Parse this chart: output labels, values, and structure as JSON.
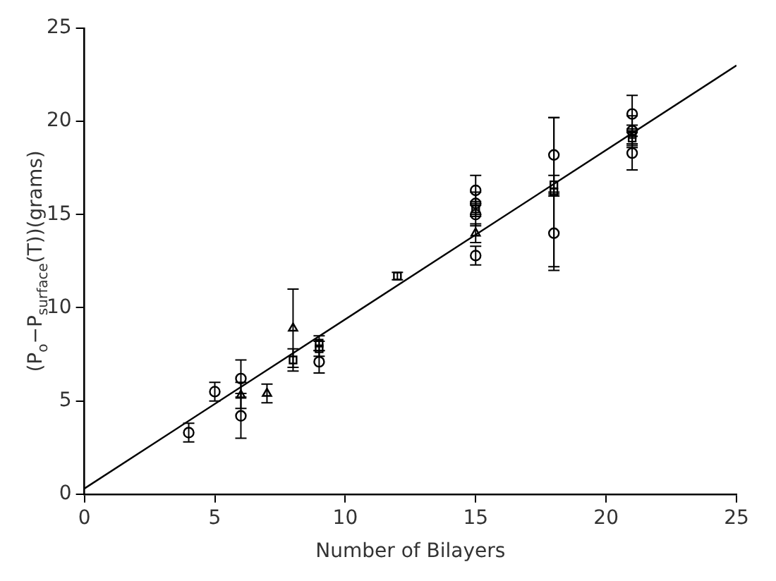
{
  "chart_data": {
    "type": "scatter",
    "xlabel": "Number of Bilayers",
    "ylabel": "(P$_{o}$−P$_{surface}$(T))(grams)",
    "xlim": [
      0,
      25
    ],
    "ylim": [
      0,
      25
    ],
    "xticks": [
      0,
      5,
      10,
      15,
      20,
      25
    ],
    "yticks": [
      0,
      5,
      10,
      15,
      20,
      25
    ],
    "grid": false,
    "legend": false,
    "series": [
      {
        "color": "#000000",
        "marker": "circle",
        "x": [
          4,
          5,
          6,
          6,
          9,
          15,
          15,
          15,
          15,
          18,
          18,
          21,
          21,
          21
        ],
        "values": [
          3.3,
          5.5,
          6.2,
          4.2,
          7.1,
          12.8,
          15.0,
          15.6,
          16.3,
          18.2,
          14.0,
          20.4,
          19.5,
          18.3
        ],
        "errors": [
          0.5,
          0.5,
          1.0,
          1.2,
          0.6,
          0.5,
          0.6,
          0.6,
          0.8,
          2.0,
          2.0,
          1.0,
          0.8,
          0.9
        ]
      },
      {
        "color": "#000000",
        "marker": "triangle",
        "x": [
          6,
          7,
          8,
          15
        ],
        "values": [
          5.3,
          5.4,
          8.9,
          14.0
        ],
        "errors": [
          0.7,
          0.5,
          2.1,
          0.5
        ]
      },
      {
        "color": "#000000",
        "marker": "square",
        "x": [
          8,
          9,
          9,
          12,
          15,
          18,
          18,
          21,
          21
        ],
        "values": [
          7.2,
          7.8,
          8.1,
          11.7,
          15.3,
          16.2,
          16.6,
          19.1,
          19.3
        ],
        "errors": [
          0.6,
          0.4,
          0.4,
          0.2,
          0.4,
          4.0,
          0.5,
          0.5,
          0.5
        ]
      },
      {
        "type": "line",
        "color": "#000000",
        "marker": "none",
        "line_style": "solid",
        "x": [
          0,
          25
        ],
        "values": [
          0.3,
          23.0
        ]
      }
    ]
  }
}
